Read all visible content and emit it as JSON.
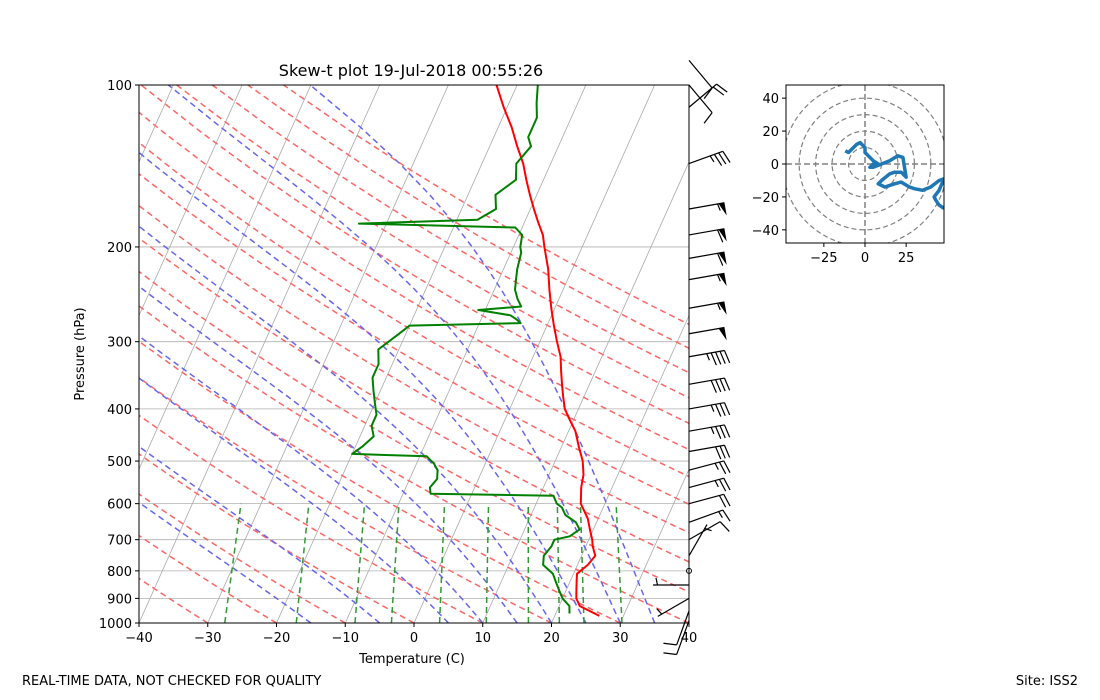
{
  "footer": {
    "disclaimer": "REAL-TIME DATA, NOT CHECKED FOR QUALITY",
    "site": "Site: ISS2"
  },
  "colors": {
    "temperature": "#ff0000",
    "dewpoint": "#008000",
    "dry_adiabat": "#ff6666",
    "moist_adiabat": "#6666ee",
    "mixing_ratio": "#339933",
    "isotherm": "#aaaaaa",
    "hodograph": "#1f77b4",
    "hodo_grid": "#808080"
  },
  "chart_data": [
    {
      "type": "line",
      "name": "skew-t",
      "title": "Skew-t plot 19-Jul-2018 00:55:26",
      "xlabel": "Temperature (C)",
      "ylabel": "Pressure (hPa)",
      "xlim": [
        -40,
        40
      ],
      "ylim": [
        1000,
        100
      ],
      "y_scale": "log",
      "x_ticks": [
        -40,
        -30,
        -20,
        -10,
        0,
        10,
        20,
        30,
        40
      ],
      "y_ticks": [
        100,
        200,
        300,
        400,
        500,
        600,
        700,
        800,
        900,
        1000
      ],
      "x_tick_labels": [
        "−40",
        "−30",
        "−20",
        "−10",
        "0",
        "10",
        "20",
        "30",
        "40"
      ],
      "y_tick_labels": [
        "100",
        "200",
        "300",
        "400",
        "500",
        "600",
        "700",
        "800",
        "900",
        "1000"
      ],
      "grid": true,
      "series": [
        {
          "key": "temperature",
          "points": [
            [
              970,
              26.5
            ],
            [
              930,
              23
            ],
            [
              900,
              22
            ],
            [
              870,
              21.5
            ],
            [
              840,
              21
            ],
            [
              810,
              20.5
            ],
            [
              780,
              21.5
            ],
            [
              750,
              22
            ],
            [
              720,
              21
            ],
            [
              700,
              20.5
            ],
            [
              670,
              19.5
            ],
            [
              640,
              18.5
            ],
            [
              600,
              16.5
            ],
            [
              560,
              15.5
            ],
            [
              530,
              15
            ],
            [
              500,
              14
            ],
            [
              470,
              12.5
            ],
            [
              440,
              11
            ],
            [
              420,
              9.5
            ],
            [
              400,
              8
            ],
            [
              380,
              7
            ],
            [
              360,
              6
            ],
            [
              340,
              5
            ],
            [
              320,
              4
            ],
            [
              300,
              2.5
            ],
            [
              280,
              1
            ],
            [
              260,
              -0.5
            ],
            [
              240,
              -2
            ],
            [
              220,
              -3.5
            ],
            [
              200,
              -5.5
            ],
            [
              190,
              -6.5
            ],
            [
              180,
              -8
            ],
            [
              170,
              -9.5
            ],
            [
              160,
              -11
            ],
            [
              150,
              -12.5
            ],
            [
              140,
              -14
            ],
            [
              130,
              -16
            ],
            [
              120,
              -18
            ],
            [
              110,
              -20.5
            ],
            [
              100,
              -23
            ]
          ]
        },
        {
          "key": "dewpoint",
          "points": [
            [
              960,
              22
            ],
            [
              930,
              21.5
            ],
            [
              900,
              20
            ],
            [
              870,
              19
            ],
            [
              840,
              18
            ],
            [
              810,
              17
            ],
            [
              780,
              15
            ],
            [
              750,
              14.5
            ],
            [
              720,
              15
            ],
            [
              700,
              15
            ],
            [
              690,
              17
            ],
            [
              670,
              18
            ],
            [
              650,
              17
            ],
            [
              630,
              15
            ],
            [
              610,
              14
            ],
            [
              600,
              13
            ],
            [
              580,
              12
            ],
            [
              575,
              -6
            ],
            [
              560,
              -6.5
            ],
            [
              540,
              -6
            ],
            [
              520,
              -6.5
            ],
            [
              505,
              -7.5
            ],
            [
              490,
              -9
            ],
            [
              485,
              -20
            ],
            [
              470,
              -19
            ],
            [
              450,
              -18
            ],
            [
              430,
              -19
            ],
            [
              410,
              -19
            ],
            [
              390,
              -20
            ],
            [
              370,
              -21
            ],
            [
              350,
              -22
            ],
            [
              330,
              -22
            ],
            [
              310,
              -23
            ],
            [
              290,
              -21
            ],
            [
              280,
              -20
            ],
            [
              277,
              -4
            ],
            [
              272,
              -5
            ],
            [
              268,
              -6
            ],
            [
              262,
              -11
            ],
            [
              258,
              -5
            ],
            [
              250,
              -6
            ],
            [
              240,
              -7
            ],
            [
              230,
              -7.5
            ],
            [
              220,
              -8
            ],
            [
              205,
              -8.5
            ],
            [
              200,
              -9
            ],
            [
              190,
              -9.5
            ],
            [
              184,
              -11
            ],
            [
              181,
              -34
            ],
            [
              178,
              -17
            ],
            [
              170,
              -15
            ],
            [
              160,
              -16
            ],
            [
              150,
              -14
            ],
            [
              140,
              -15
            ],
            [
              130,
              -14
            ],
            [
              125,
              -15
            ],
            [
              115,
              -15
            ],
            [
              108,
              -16
            ],
            [
              100,
              -17
            ]
          ]
        }
      ],
      "wind_barbs": [
        {
          "p": 990,
          "dir": 200,
          "spd": 10
        },
        {
          "p": 950,
          "dir": 200,
          "spd": 10
        },
        {
          "p": 900,
          "dir": 240,
          "spd": 5
        },
        {
          "p": 850,
          "dir": 270,
          "spd": 5
        },
        {
          "p": 800,
          "dir": 0,
          "spd": 0
        },
        {
          "p": 750,
          "dir": 30,
          "spd": 5
        },
        {
          "p": 700,
          "dir": 60,
          "spd": 10
        },
        {
          "p": 650,
          "dir": 70,
          "spd": 15
        },
        {
          "p": 600,
          "dir": 75,
          "spd": 20
        },
        {
          "p": 560,
          "dir": 75,
          "spd": 25
        },
        {
          "p": 520,
          "dir": 75,
          "spd": 25
        },
        {
          "p": 480,
          "dir": 80,
          "spd": 30
        },
        {
          "p": 440,
          "dir": 80,
          "spd": 35
        },
        {
          "p": 400,
          "dir": 80,
          "spd": 35
        },
        {
          "p": 360,
          "dir": 80,
          "spd": 40
        },
        {
          "p": 320,
          "dir": 80,
          "spd": 45
        },
        {
          "p": 290,
          "dir": 80,
          "spd": 50
        },
        {
          "p": 260,
          "dir": 80,
          "spd": 55
        },
        {
          "p": 230,
          "dir": 80,
          "spd": 55
        },
        {
          "p": 210,
          "dir": 80,
          "spd": 60
        },
        {
          "p": 190,
          "dir": 80,
          "spd": 60
        },
        {
          "p": 170,
          "dir": 80,
          "spd": 55
        },
        {
          "p": 140,
          "dir": 70,
          "spd": 35
        },
        {
          "p": 110,
          "dir": 50,
          "spd": 20
        },
        {
          "p": 100,
          "dir": 140,
          "spd": 10
        },
        {
          "p": 90,
          "dir": 140,
          "spd": 10
        }
      ]
    },
    {
      "type": "line",
      "name": "hodograph",
      "xlim": [
        -48,
        48
      ],
      "ylim": [
        -48,
        48
      ],
      "x_ticks": [
        -25,
        0,
        25
      ],
      "y_ticks": [
        -40,
        -20,
        0,
        20,
        40
      ],
      "x_tick_labels": [
        "−25",
        "0",
        "25"
      ],
      "y_tick_labels": [
        "−40",
        "−20",
        "0",
        "20",
        "40"
      ],
      "rings": [
        10,
        20,
        30,
        40,
        50
      ],
      "u": [
        -12,
        -10,
        -7,
        -5,
        -3,
        -2,
        0,
        0,
        2,
        3,
        5,
        8,
        5,
        3,
        5,
        10,
        15,
        20,
        23,
        25,
        22,
        18,
        15,
        10,
        8,
        12,
        18,
        22,
        27,
        30,
        35,
        40,
        45,
        48,
        45,
        42,
        43,
        45,
        48
      ],
      "v": [
        8,
        7,
        10,
        12,
        13,
        12,
        10,
        7,
        5,
        4,
        2,
        0,
        0,
        -2,
        -2,
        0,
        2,
        5,
        4,
        -8,
        -5,
        -5,
        -6,
        -10,
        -12,
        -14,
        -12,
        -11,
        -14,
        -15,
        -16,
        -14,
        -10,
        -9,
        -16,
        -20,
        -22,
        -25,
        -27
      ]
    }
  ]
}
